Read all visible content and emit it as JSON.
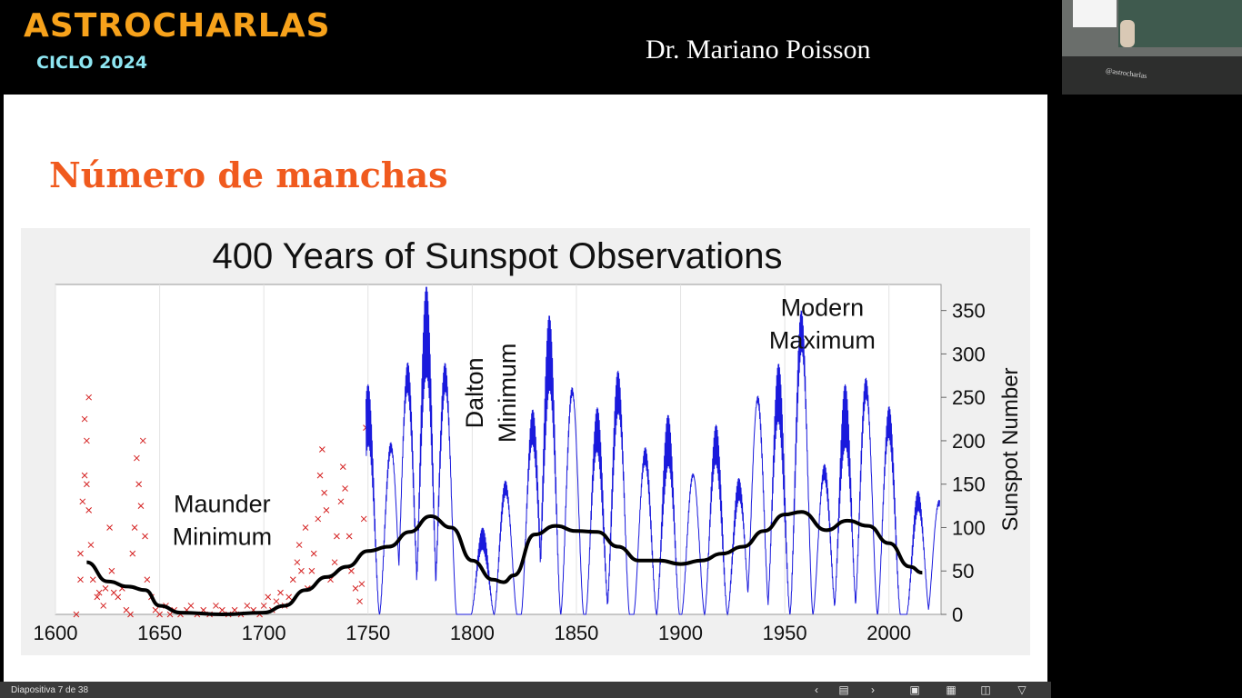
{
  "header": {
    "brand": "ASTROCHARLAS",
    "subtitle": "CICLO 2024",
    "speaker": "Dr. Mariano Poisson",
    "camera_tag": "@astrocharlas"
  },
  "slide": {
    "title": "Número de manchas"
  },
  "chart_data": {
    "type": "line",
    "title": "400 Years of Sunspot Observations",
    "xlabel": "",
    "ylabel": "Sunspot Number",
    "xlim": [
      1600,
      2025
    ],
    "ylim": [
      0,
      380
    ],
    "x_ticks": [
      "1600",
      "1650",
      "1700",
      "1750",
      "1800",
      "1850",
      "1900",
      "1950",
      "2000"
    ],
    "y_ticks": [
      "0",
      "50",
      "100",
      "150",
      "200",
      "250",
      "300",
      "350"
    ],
    "grid": "vertical",
    "annotations": [
      {
        "lines": [
          "Maunder",
          "Minimum"
        ],
        "x": 1680,
        "y": 118
      },
      {
        "lines": [
          "Dalton",
          "Minimum"
        ],
        "x": 1813,
        "y": 255,
        "rotated": true
      },
      {
        "lines": [
          "Modern",
          "Maximum"
        ],
        "x": 1968,
        "y": 344
      }
    ],
    "colors": {
      "early": "#d42020",
      "monthly": "#1a1adc",
      "smooth": "#000000"
    },
    "early_observations": [
      [
        1610,
        0
      ],
      [
        1612,
        70
      ],
      [
        1612,
        40
      ],
      [
        1613,
        130
      ],
      [
        1614,
        225
      ],
      [
        1614,
        160
      ],
      [
        1615,
        200
      ],
      [
        1615,
        150
      ],
      [
        1616,
        250
      ],
      [
        1616,
        120
      ],
      [
        1617,
        80
      ],
      [
        1618,
        40
      ],
      [
        1620,
        20
      ],
      [
        1621,
        25
      ],
      [
        1623,
        10
      ],
      [
        1624,
        30
      ],
      [
        1626,
        100
      ],
      [
        1627,
        50
      ],
      [
        1628,
        25
      ],
      [
        1630,
        20
      ],
      [
        1632,
        30
      ],
      [
        1634,
        5
      ],
      [
        1636,
        0
      ],
      [
        1637,
        70
      ],
      [
        1638,
        100
      ],
      [
        1639,
        180
      ],
      [
        1640,
        150
      ],
      [
        1641,
        125
      ],
      [
        1642,
        200
      ],
      [
        1643,
        90
      ],
      [
        1644,
        40
      ],
      [
        1646,
        20
      ],
      [
        1648,
        5
      ],
      [
        1650,
        0
      ],
      [
        1653,
        10
      ],
      [
        1655,
        0
      ],
      [
        1657,
        5
      ],
      [
        1660,
        0
      ],
      [
        1663,
        5
      ],
      [
        1665,
        10
      ],
      [
        1668,
        0
      ],
      [
        1671,
        5
      ],
      [
        1674,
        0
      ],
      [
        1677,
        10
      ],
      [
        1680,
        5
      ],
      [
        1683,
        0
      ],
      [
        1686,
        5
      ],
      [
        1689,
        0
      ],
      [
        1692,
        10
      ],
      [
        1695,
        5
      ],
      [
        1698,
        0
      ],
      [
        1700,
        10
      ],
      [
        1702,
        20
      ],
      [
        1704,
        5
      ],
      [
        1706,
        15
      ],
      [
        1708,
        25
      ],
      [
        1710,
        10
      ],
      [
        1712,
        20
      ],
      [
        1714,
        40
      ],
      [
        1716,
        60
      ],
      [
        1717,
        80
      ],
      [
        1718,
        50
      ],
      [
        1720,
        100
      ],
      [
        1721,
        30
      ],
      [
        1723,
        50
      ],
      [
        1724,
        70
      ],
      [
        1726,
        110
      ],
      [
        1727,
        160
      ],
      [
        1728,
        190
      ],
      [
        1729,
        140
      ],
      [
        1730,
        120
      ],
      [
        1732,
        40
      ],
      [
        1734,
        60
      ],
      [
        1735,
        90
      ],
      [
        1737,
        130
      ],
      [
        1738,
        170
      ],
      [
        1739,
        145
      ],
      [
        1741,
        90
      ],
      [
        1742,
        50
      ],
      [
        1744,
        30
      ],
      [
        1746,
        15
      ],
      [
        1747,
        35
      ],
      [
        1748,
        110
      ],
      [
        1749,
        215
      ]
    ],
    "cycles": [
      {
        "max_year": 1750,
        "peak": 265
      },
      {
        "max_year": 1761,
        "peak": 210
      },
      {
        "max_year": 1769,
        "peak": 300
      },
      {
        "max_year": 1778,
        "peak": 378
      },
      {
        "max_year": 1787,
        "peak": 300
      },
      {
        "max_year": 1805,
        "peak": 100
      },
      {
        "max_year": 1816,
        "peak": 160
      },
      {
        "max_year": 1829,
        "peak": 240
      },
      {
        "max_year": 1837,
        "peak": 345
      },
      {
        "max_year": 1848,
        "peak": 280
      },
      {
        "max_year": 1860,
        "peak": 240
      },
      {
        "max_year": 1870,
        "peak": 285
      },
      {
        "max_year": 1883,
        "peak": 200
      },
      {
        "max_year": 1894,
        "peak": 230
      },
      {
        "max_year": 1906,
        "peak": 175
      },
      {
        "max_year": 1917,
        "peak": 220
      },
      {
        "max_year": 1928,
        "peak": 160
      },
      {
        "max_year": 1937,
        "peak": 270
      },
      {
        "max_year": 1947,
        "peak": 290
      },
      {
        "max_year": 1958,
        "peak": 360
      },
      {
        "max_year": 1969,
        "peak": 180
      },
      {
        "max_year": 1979,
        "peak": 265
      },
      {
        "max_year": 1989,
        "peak": 285
      },
      {
        "max_year": 2000,
        "peak": 245
      },
      {
        "max_year": 2014,
        "peak": 145
      },
      {
        "max_year": 2024,
        "peak": 140
      }
    ],
    "smoothed": {
      "x": [
        1615,
        1625,
        1635,
        1643,
        1650,
        1660,
        1680,
        1700,
        1710,
        1720,
        1730,
        1740,
        1750,
        1760,
        1770,
        1780,
        1790,
        1800,
        1810,
        1815,
        1820,
        1830,
        1840,
        1850,
        1860,
        1870,
        1880,
        1890,
        1900,
        1910,
        1920,
        1930,
        1940,
        1950,
        1958,
        1970,
        1980,
        1990,
        2000,
        2010,
        2016
      ],
      "y": [
        60,
        38,
        32,
        28,
        10,
        2,
        0,
        2,
        10,
        28,
        43,
        55,
        73,
        78,
        95,
        113,
        100,
        62,
        40,
        37,
        45,
        92,
        102,
        96,
        95,
        78,
        62,
        62,
        58,
        62,
        70,
        78,
        96,
        115,
        118,
        97,
        108,
        102,
        82,
        55,
        48
      ]
    }
  },
  "status_bar": {
    "slide_counter": "Diapositiva 7 de 38",
    "icons": [
      "chevron-left-icon",
      "notes-icon",
      "chevron-right-icon",
      "normal-view-icon",
      "slide-sorter-icon",
      "reading-view-icon",
      "presenter-icon"
    ]
  }
}
